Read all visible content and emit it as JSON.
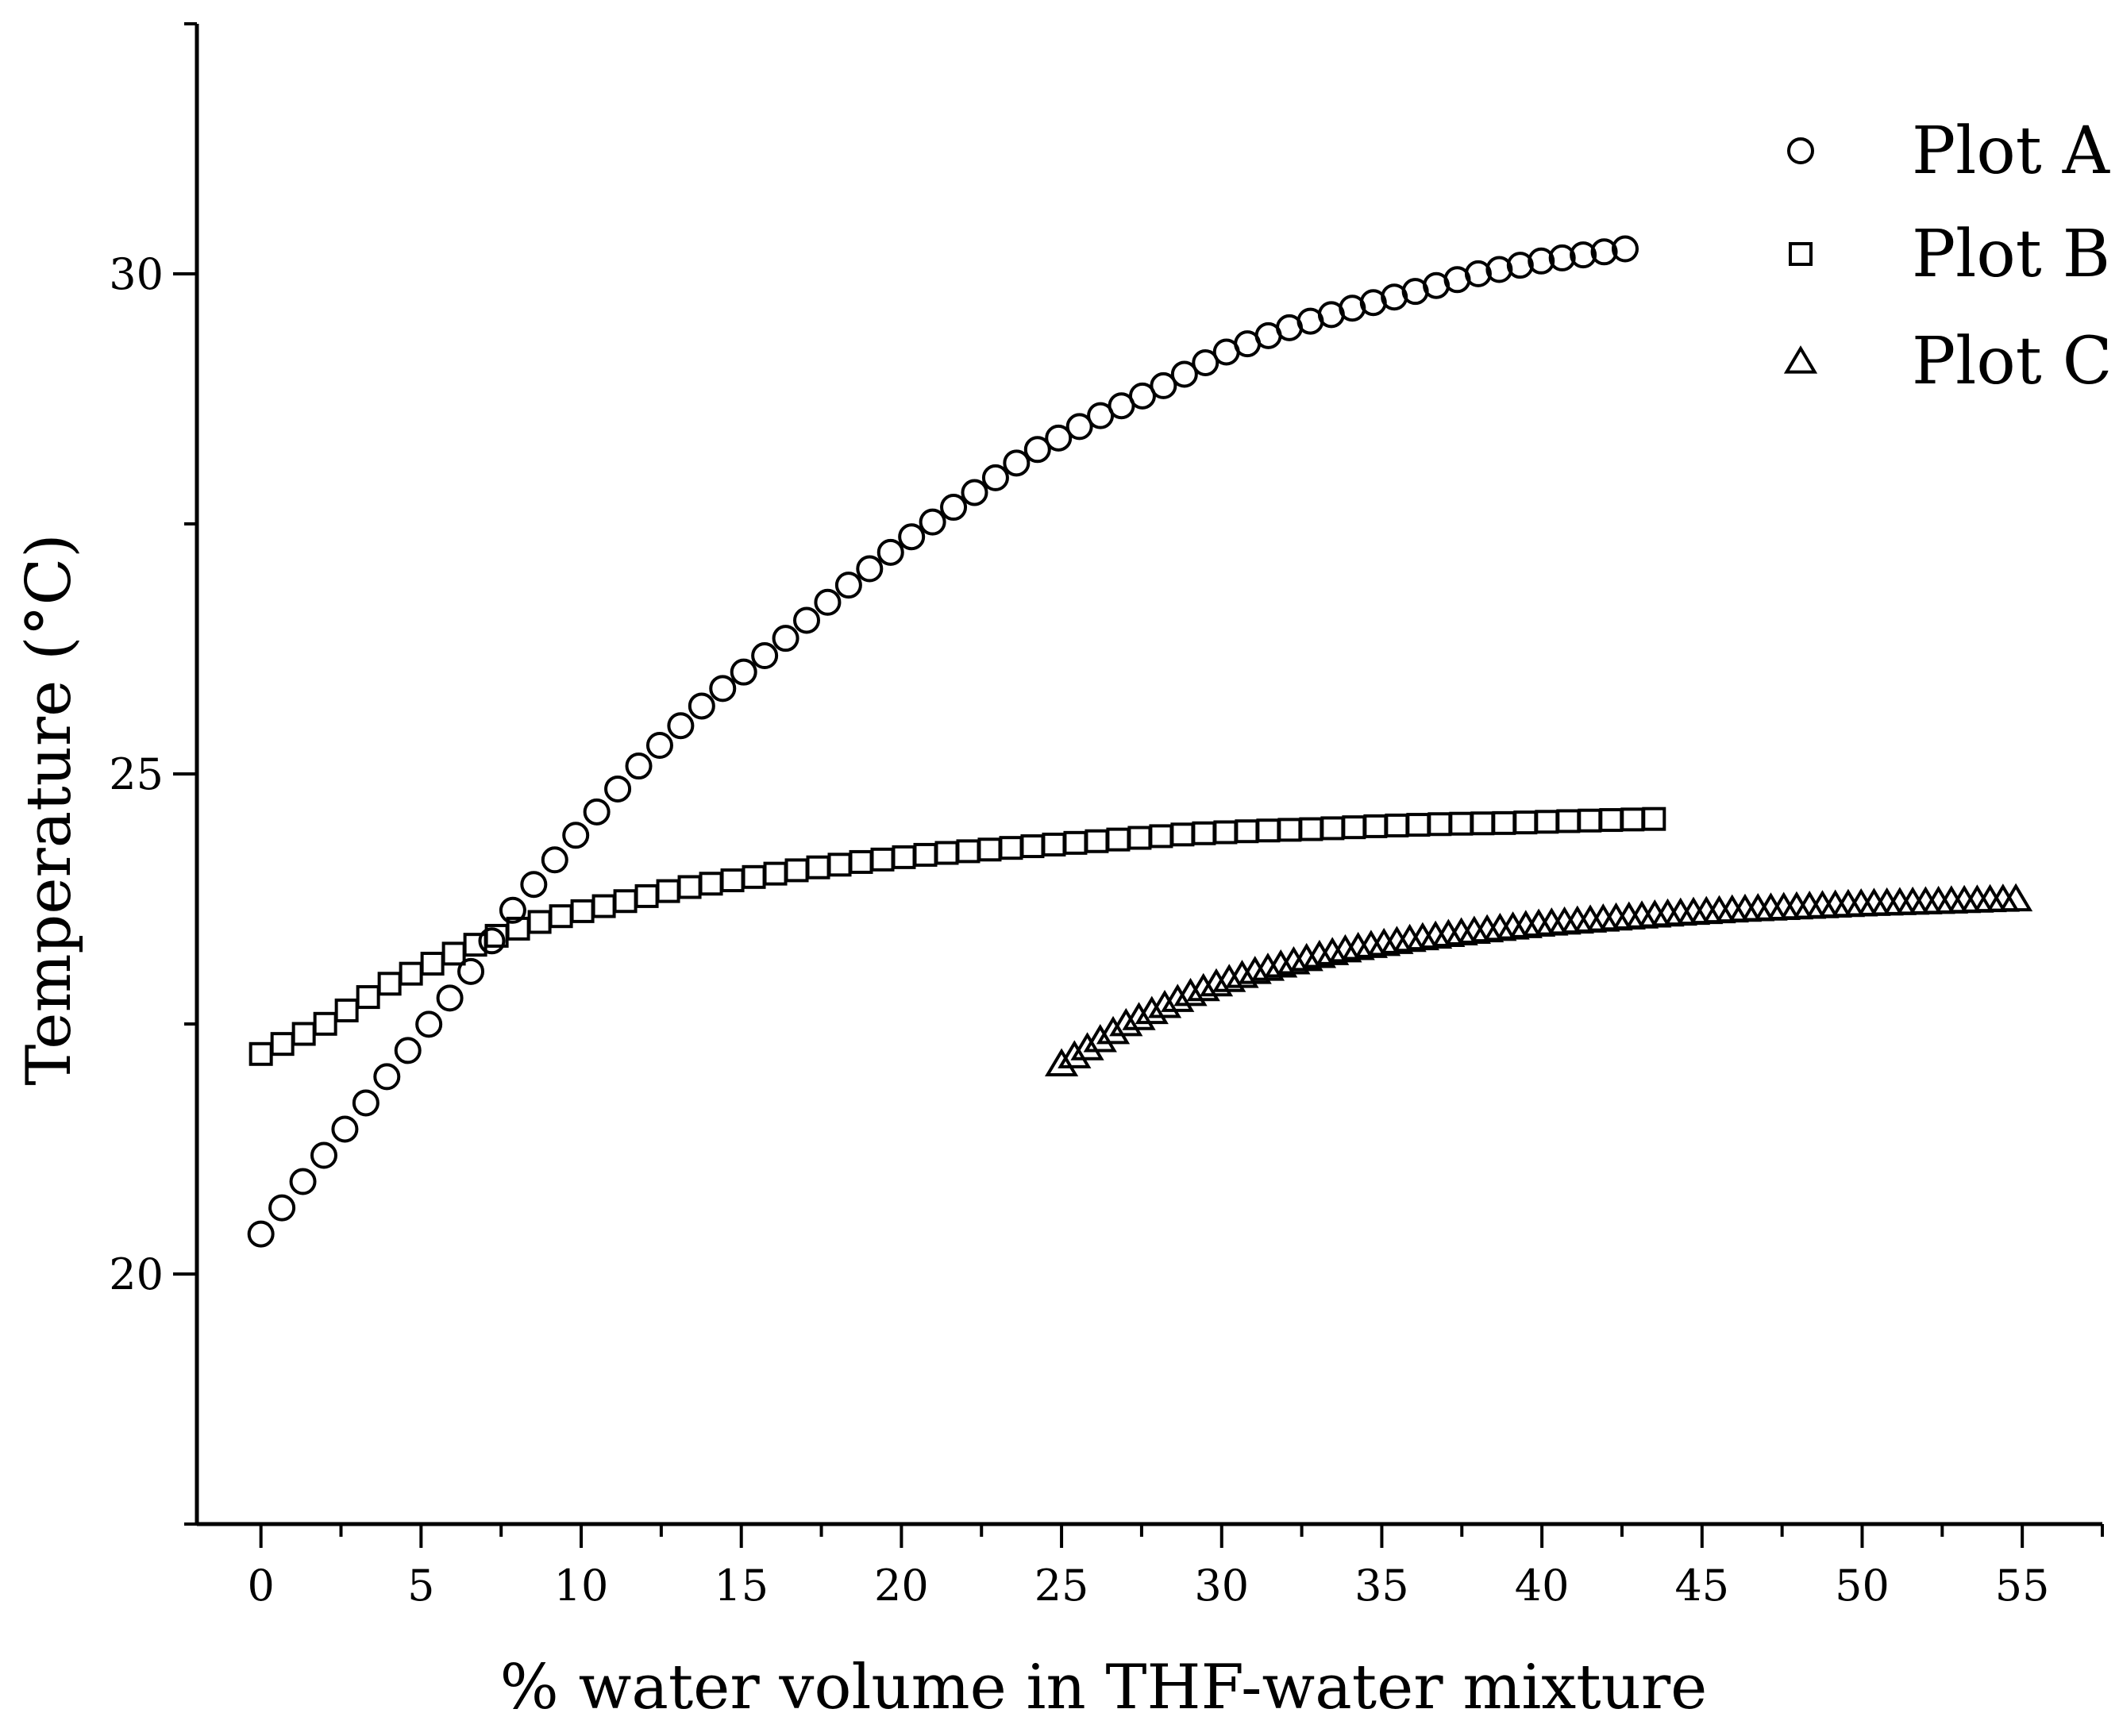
{
  "chart_data": {
    "type": "scatter",
    "title": "",
    "xlabel": "% water volume in THF-water mixture",
    "ylabel": "Temperature (°C)",
    "xlim": [
      -2,
      57.5
    ],
    "ylim": [
      17.5,
      32.5
    ],
    "xticks": [
      0,
      5,
      10,
      15,
      20,
      25,
      30,
      35,
      40,
      45,
      50,
      55
    ],
    "xtick_labels": [
      "0",
      "5",
      "10",
      "15",
      "20",
      "25",
      "30",
      "35",
      "40",
      "45",
      "50",
      "55"
    ],
    "yticks": [
      20,
      25,
      30
    ],
    "ytick_labels": [
      "20",
      "25",
      "30"
    ],
    "grid": false,
    "legend_position": "top-right",
    "series": [
      {
        "name": "Plot A",
        "marker": "circle",
        "x_start": 0,
        "x_end": 42.6,
        "count": 66,
        "anchors": [
          [
            0,
            20.4
          ],
          [
            2.5,
            21.4
          ],
          [
            5,
            22.4
          ],
          [
            6.5,
            23.0
          ],
          [
            8,
            23.7
          ],
          [
            10,
            24.45
          ],
          [
            12,
            25.15
          ],
          [
            14,
            25.75
          ],
          [
            16,
            26.25
          ],
          [
            18,
            26.8
          ],
          [
            20,
            27.3
          ],
          [
            22,
            27.75
          ],
          [
            24,
            28.2
          ],
          [
            26,
            28.55
          ],
          [
            28,
            28.85
          ],
          [
            30,
            29.2
          ],
          [
            32,
            29.45
          ],
          [
            34,
            29.65
          ],
          [
            36,
            29.82
          ],
          [
            38,
            30.0
          ],
          [
            40,
            30.13
          ],
          [
            42.6,
            30.25
          ]
        ]
      },
      {
        "name": "Plot B",
        "marker": "square",
        "x_start": 0,
        "x_end": 43.5,
        "count": 66,
        "anchors": [
          [
            0,
            22.2
          ],
          [
            2,
            22.5
          ],
          [
            4,
            22.9
          ],
          [
            6,
            23.2
          ],
          [
            7.5,
            23.4
          ],
          [
            9,
            23.55
          ],
          [
            11,
            23.7
          ],
          [
            13,
            23.85
          ],
          [
            15,
            23.95
          ],
          [
            17,
            24.05
          ],
          [
            19,
            24.13
          ],
          [
            21,
            24.2
          ],
          [
            23,
            24.25
          ],
          [
            25,
            24.3
          ],
          [
            27,
            24.35
          ],
          [
            29,
            24.4
          ],
          [
            31,
            24.43
          ],
          [
            33,
            24.45
          ],
          [
            35,
            24.48
          ],
          [
            37,
            24.5
          ],
          [
            39,
            24.51
          ],
          [
            41,
            24.53
          ],
          [
            43.5,
            24.55
          ]
        ]
      },
      {
        "name": "Plot C",
        "marker": "triangle",
        "x_start": 25,
        "x_end": 54.8,
        "count": 75,
        "anchors": [
          [
            25,
            22.1
          ],
          [
            26,
            22.3
          ],
          [
            27,
            22.5
          ],
          [
            28,
            22.65
          ],
          [
            29,
            22.8
          ],
          [
            30,
            22.92
          ],
          [
            31,
            23.02
          ],
          [
            32,
            23.1
          ],
          [
            33,
            23.18
          ],
          [
            34,
            23.25
          ],
          [
            35,
            23.3
          ],
          [
            36,
            23.35
          ],
          [
            38,
            23.43
          ],
          [
            40,
            23.5
          ],
          [
            42,
            23.55
          ],
          [
            44,
            23.6
          ],
          [
            46,
            23.64
          ],
          [
            48,
            23.67
          ],
          [
            50,
            23.7
          ],
          [
            52,
            23.72
          ],
          [
            54.8,
            23.75
          ]
        ]
      }
    ]
  }
}
